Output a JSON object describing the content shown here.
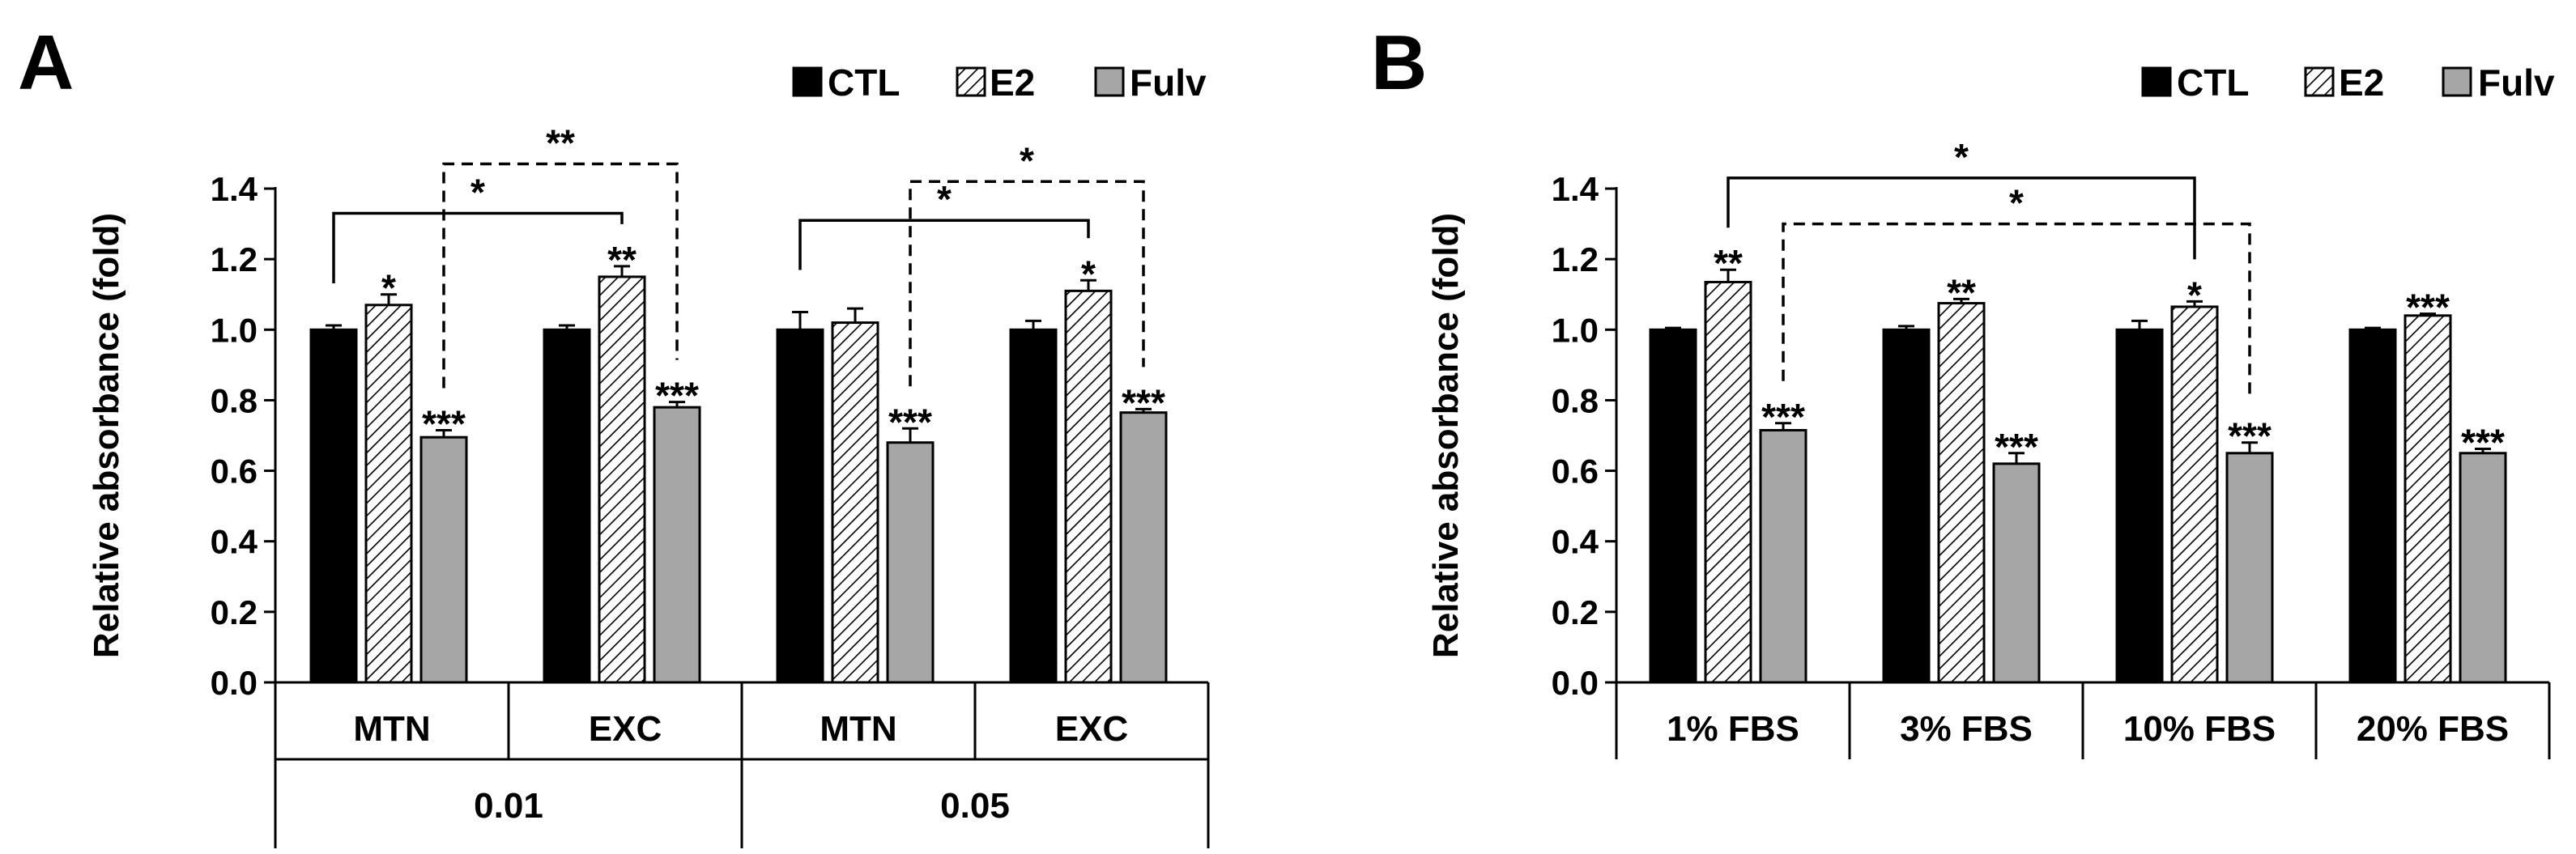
{
  "chart_data": [
    {
      "type": "bar",
      "panel_label": "A",
      "ylabel": "Relative absorbance (fold)",
      "ylim": [
        0,
        1.4
      ],
      "yticks": [
        "0.0",
        "0.2",
        "0.4",
        "0.6",
        "0.8",
        "1.0",
        "1.2",
        "1.4"
      ],
      "categories": [
        "MTN",
        "EXC",
        "MTN",
        "EXC"
      ],
      "groups": [
        {
          "label": "0.01",
          "span": [
            0,
            1
          ]
        },
        {
          "label": "0.05",
          "span": [
            2,
            3
          ]
        }
      ],
      "legend_position": "top-right",
      "series": [
        {
          "name": "CTL",
          "pattern": "solid",
          "color": "#000000",
          "values": [
            1.0,
            1.0,
            1.0,
            1.0
          ],
          "errors": [
            0.012,
            0.012,
            0.05,
            0.025
          ],
          "stars": [
            "",
            "",
            "",
            ""
          ]
        },
        {
          "name": "E2",
          "pattern": "hatch",
          "color": "#ffffff",
          "values": [
            1.07,
            1.15,
            1.02,
            1.11
          ],
          "errors": [
            0.03,
            0.03,
            0.04,
            0.03
          ],
          "stars": [
            "*",
            "**",
            "",
            "*"
          ]
        },
        {
          "name": "Fulv",
          "pattern": "solid",
          "color": "#a6a6a6",
          "values": [
            0.695,
            0.78,
            0.68,
            0.765
          ],
          "errors": [
            0.02,
            0.015,
            0.04,
            0.01
          ],
          "stars": [
            "***",
            "***",
            "***",
            "***"
          ]
        }
      ],
      "brackets": [
        {
          "from": [
            0,
            0
          ],
          "to": [
            1,
            1
          ],
          "label": "*",
          "style": "solid",
          "y": 1.33
        },
        {
          "from": [
            0,
            2
          ],
          "to": [
            1,
            2
          ],
          "label": "**",
          "style": "dashed",
          "y": 1.47
        },
        {
          "from": [
            2,
            0
          ],
          "to": [
            3,
            1
          ],
          "label": "*",
          "style": "solid",
          "y": 1.31
        },
        {
          "from": [
            2,
            2
          ],
          "to": [
            3,
            2
          ],
          "label": "*",
          "style": "dashed",
          "y": 1.42
        }
      ]
    },
    {
      "type": "bar",
      "panel_label": "B",
      "ylabel": "Relative absorbance (fold)",
      "ylim": [
        0,
        1.4
      ],
      "yticks": [
        "0.0",
        "0.2",
        "0.4",
        "0.6",
        "0.8",
        "1.0",
        "1.2",
        "1.4"
      ],
      "categories": [
        "1% FBS",
        "3% FBS",
        "10% FBS",
        "20% FBS"
      ],
      "groups": [],
      "legend_position": "top-right",
      "series": [
        {
          "name": "CTL",
          "pattern": "solid",
          "color": "#000000",
          "values": [
            1.0,
            1.0,
            1.0,
            1.0
          ],
          "errors": [
            0.005,
            0.01,
            0.025,
            0.005
          ],
          "stars": [
            "",
            "",
            "",
            ""
          ]
        },
        {
          "name": "E2",
          "pattern": "hatch",
          "color": "#ffffff",
          "values": [
            1.135,
            1.075,
            1.065,
            1.04
          ],
          "errors": [
            0.035,
            0.012,
            0.015,
            0.005
          ],
          "stars": [
            "**",
            "**",
            "*",
            "***"
          ]
        },
        {
          "name": "Fulv",
          "pattern": "solid",
          "color": "#a6a6a6",
          "values": [
            0.715,
            0.62,
            0.65,
            0.65
          ],
          "errors": [
            0.02,
            0.03,
            0.03,
            0.012
          ],
          "stars": [
            "***",
            "***",
            "***",
            "***"
          ]
        }
      ],
      "brackets": [
        {
          "from": [
            0,
            1
          ],
          "to": [
            2,
            1
          ],
          "label": "*",
          "style": "solid",
          "y": 1.43
        },
        {
          "from": [
            0,
            2
          ],
          "to": [
            2,
            2
          ],
          "label": "*",
          "style": "dashed",
          "y": 1.3
        }
      ]
    }
  ]
}
